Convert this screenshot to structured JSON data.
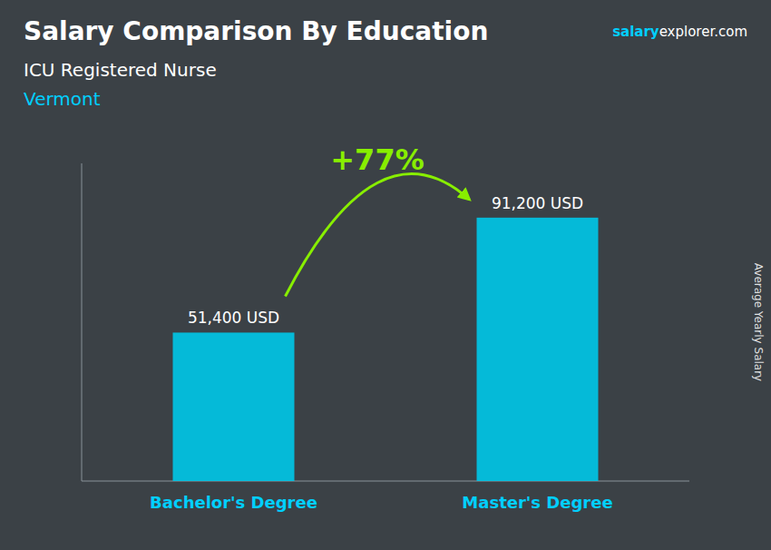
{
  "chart_data": {
    "type": "bar",
    "title": "Salary Comparison By Education",
    "subtitle": "ICU Registered Nurse",
    "annotations": [
      "Vermont",
      "salary",
      "explorer.com",
      "+77%"
    ],
    "ylabel": "Average Yearly Salary",
    "categories": [
      "Bachelor's Degree",
      "Master's Degree"
    ],
    "values": [
      51400,
      91200
    ],
    "value_labels": [
      "51,400 USD",
      "91,200 USD"
    ],
    "data_labels": true,
    "color": "#00C8E8",
    "ylim": [
      0,
      110000
    ],
    "tick_labels": "x",
    "grid": false
  }
}
